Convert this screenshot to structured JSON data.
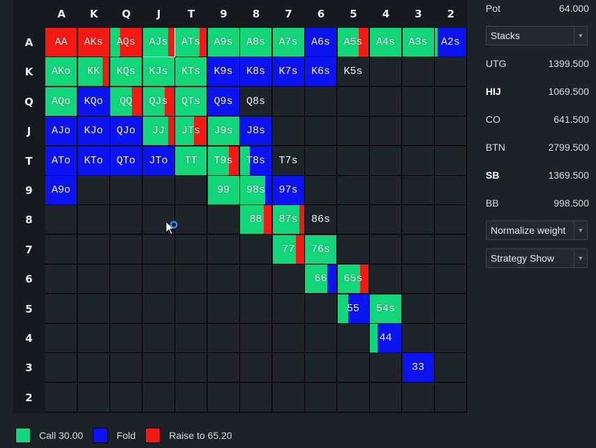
{
  "colors": {
    "call": "#12d77a",
    "fold": "#0b13f0",
    "raise": "#f21a12",
    "empty": "#1d252b"
  },
  "ranks": [
    "A",
    "K",
    "Q",
    "J",
    "T",
    "9",
    "8",
    "7",
    "6",
    "5",
    "4",
    "3",
    "2"
  ],
  "selected_hand": "AJs",
  "cells": [
    {
      "r": 0,
      "c": 0,
      "label": "AA",
      "mix": [
        [
          "raise",
          1
        ]
      ]
    },
    {
      "r": 0,
      "c": 1,
      "label": "AKs",
      "mix": [
        [
          "raise",
          1
        ]
      ]
    },
    {
      "r": 0,
      "c": 2,
      "label": "AQs",
      "mix": [
        [
          "call",
          0.32
        ],
        [
          "raise",
          0.68
        ]
      ]
    },
    {
      "r": 0,
      "c": 3,
      "label": "AJs",
      "mix": [
        [
          "call",
          0.8
        ],
        [
          "raise",
          0.2
        ]
      ]
    },
    {
      "r": 0,
      "c": 4,
      "label": "ATs",
      "mix": [
        [
          "call",
          0.78
        ],
        [
          "raise",
          0.22
        ]
      ]
    },
    {
      "r": 0,
      "c": 5,
      "label": "A9s",
      "mix": [
        [
          "call",
          1
        ]
      ]
    },
    {
      "r": 0,
      "c": 6,
      "label": "A8s",
      "mix": [
        [
          "call",
          1
        ]
      ]
    },
    {
      "r": 0,
      "c": 7,
      "label": "A7s",
      "mix": [
        [
          "call",
          1
        ]
      ]
    },
    {
      "r": 0,
      "c": 8,
      "label": "A6s",
      "mix": [
        [
          "fold",
          1
        ]
      ]
    },
    {
      "r": 0,
      "c": 9,
      "label": "A5s",
      "mix": [
        [
          "call",
          0.68
        ],
        [
          "raise",
          0.32
        ]
      ]
    },
    {
      "r": 0,
      "c": 10,
      "label": "A4s",
      "mix": [
        [
          "call",
          1
        ]
      ]
    },
    {
      "r": 0,
      "c": 11,
      "label": "A3s",
      "mix": [
        [
          "call",
          1
        ]
      ]
    },
    {
      "r": 0,
      "c": 12,
      "label": "A2s",
      "mix": [
        [
          "call",
          0.08
        ],
        [
          "fold",
          0.92
        ]
      ]
    },
    {
      "r": 1,
      "c": 0,
      "label": "AKo",
      "mix": [
        [
          "call",
          1
        ]
      ]
    },
    {
      "r": 1,
      "c": 1,
      "label": "KK",
      "mix": [
        [
          "call",
          0.78
        ],
        [
          "raise",
          0.22
        ]
      ]
    },
    {
      "r": 1,
      "c": 2,
      "label": "KQs",
      "mix": [
        [
          "call",
          1
        ]
      ]
    },
    {
      "r": 1,
      "c": 3,
      "label": "KJs",
      "mix": [
        [
          "call",
          1
        ]
      ]
    },
    {
      "r": 1,
      "c": 4,
      "label": "KTs",
      "mix": [
        [
          "call",
          1
        ]
      ]
    },
    {
      "r": 1,
      "c": 5,
      "label": "K9s",
      "mix": [
        [
          "fold",
          1
        ]
      ]
    },
    {
      "r": 1,
      "c": 6,
      "label": "K8s",
      "mix": [
        [
          "fold",
          1
        ]
      ]
    },
    {
      "r": 1,
      "c": 7,
      "label": "K7s",
      "mix": [
        [
          "fold",
          1
        ]
      ]
    },
    {
      "r": 1,
      "c": 8,
      "label": "K6s",
      "mix": [
        [
          "fold",
          1
        ]
      ]
    },
    {
      "r": 1,
      "c": 9,
      "label": "K5s",
      "mix": []
    },
    {
      "r": 2,
      "c": 0,
      "label": "AQo",
      "mix": [
        [
          "call",
          1
        ]
      ]
    },
    {
      "r": 2,
      "c": 1,
      "label": "KQo",
      "mix": [
        [
          "fold",
          1
        ]
      ]
    },
    {
      "r": 2,
      "c": 2,
      "label": "QQ",
      "mix": [
        [
          "call",
          0.68
        ],
        [
          "raise",
          0.32
        ]
      ]
    },
    {
      "r": 2,
      "c": 3,
      "label": "QJs",
      "mix": [
        [
          "call",
          0.7
        ],
        [
          "raise",
          0.3
        ]
      ]
    },
    {
      "r": 2,
      "c": 4,
      "label": "QTs",
      "mix": [
        [
          "call",
          1
        ]
      ]
    },
    {
      "r": 2,
      "c": 5,
      "label": "Q9s",
      "mix": [
        [
          "fold",
          1
        ]
      ]
    },
    {
      "r": 2,
      "c": 6,
      "label": "Q8s",
      "mix": []
    },
    {
      "r": 3,
      "c": 0,
      "label": "AJo",
      "mix": [
        [
          "fold",
          1
        ]
      ]
    },
    {
      "r": 3,
      "c": 1,
      "label": "KJo",
      "mix": [
        [
          "fold",
          1
        ]
      ]
    },
    {
      "r": 3,
      "c": 2,
      "label": "QJo",
      "mix": [
        [
          "fold",
          1
        ]
      ]
    },
    {
      "r": 3,
      "c": 3,
      "label": "JJ",
      "mix": [
        [
          "call",
          0.8
        ],
        [
          "raise",
          0.2
        ]
      ]
    },
    {
      "r": 3,
      "c": 4,
      "label": "JTs",
      "mix": [
        [
          "call",
          0.6
        ],
        [
          "raise",
          0.4
        ]
      ]
    },
    {
      "r": 3,
      "c": 5,
      "label": "J9s",
      "mix": [
        [
          "call",
          1
        ]
      ]
    },
    {
      "r": 3,
      "c": 6,
      "label": "J8s",
      "mix": [
        [
          "fold",
          1
        ]
      ]
    },
    {
      "r": 4,
      "c": 0,
      "label": "ATo",
      "mix": [
        [
          "fold",
          1
        ]
      ]
    },
    {
      "r": 4,
      "c": 1,
      "label": "KTo",
      "mix": [
        [
          "fold",
          1
        ]
      ]
    },
    {
      "r": 4,
      "c": 2,
      "label": "QTo",
      "mix": [
        [
          "fold",
          1
        ]
      ]
    },
    {
      "r": 4,
      "c": 3,
      "label": "JTo",
      "mix": [
        [
          "fold",
          1
        ]
      ]
    },
    {
      "r": 4,
      "c": 4,
      "label": "TT",
      "mix": [
        [
          "call",
          1
        ]
      ]
    },
    {
      "r": 4,
      "c": 5,
      "label": "T9s",
      "mix": [
        [
          "call",
          0.68
        ],
        [
          "raise",
          0.32
        ]
      ]
    },
    {
      "r": 4,
      "c": 6,
      "label": "T8s",
      "mix": [
        [
          "call",
          0.3
        ],
        [
          "fold",
          0.7
        ]
      ]
    },
    {
      "r": 4,
      "c": 7,
      "label": "T7s",
      "mix": []
    },
    {
      "r": 5,
      "c": 0,
      "label": "A9o",
      "mix": [
        [
          "fold",
          1
        ]
      ]
    },
    {
      "r": 5,
      "c": 5,
      "label": "99",
      "mix": [
        [
          "call",
          1
        ]
      ]
    },
    {
      "r": 5,
      "c": 6,
      "label": "98s",
      "mix": [
        [
          "call",
          0.8
        ],
        [
          "fold",
          0.2
        ]
      ]
    },
    {
      "r": 5,
      "c": 7,
      "label": "97s",
      "mix": [
        [
          "fold",
          1
        ]
      ]
    },
    {
      "r": 6,
      "c": 6,
      "label": "88",
      "mix": [
        [
          "call",
          0.75
        ],
        [
          "raise",
          0.25
        ]
      ]
    },
    {
      "r": 6,
      "c": 7,
      "label": "87s",
      "mix": [
        [
          "call",
          0.85
        ],
        [
          "raise",
          0.15
        ]
      ]
    },
    {
      "r": 6,
      "c": 8,
      "label": "86s",
      "mix": []
    },
    {
      "r": 7,
      "c": 7,
      "label": "77",
      "mix": [
        [
          "call",
          0.75
        ],
        [
          "raise",
          0.25
        ]
      ]
    },
    {
      "r": 7,
      "c": 8,
      "label": "76s",
      "mix": [
        [
          "call",
          1
        ]
      ]
    },
    {
      "r": 8,
      "c": 8,
      "label": "66",
      "mix": [
        [
          "call",
          0.7
        ],
        [
          "fold",
          0.3
        ]
      ]
    },
    {
      "r": 8,
      "c": 9,
      "label": "65s",
      "mix": [
        [
          "call",
          0.72
        ],
        [
          "raise",
          0.28
        ]
      ]
    },
    {
      "r": 9,
      "c": 9,
      "label": "55",
      "mix": [
        [
          "call",
          0.35
        ],
        [
          "fold",
          0.65
        ]
      ]
    },
    {
      "r": 9,
      "c": 10,
      "label": "54s",
      "mix": [
        [
          "call",
          1
        ]
      ]
    },
    {
      "r": 10,
      "c": 10,
      "label": "44",
      "mix": [
        [
          "call",
          0.25
        ],
        [
          "fold",
          0.75
        ]
      ]
    },
    {
      "r": 11,
      "c": 11,
      "label": "33",
      "mix": [
        [
          "fold",
          1
        ]
      ]
    },
    {
      "r": 12,
      "c": 12,
      "label": "",
      "mix": []
    }
  ],
  "panel": {
    "pot_label": "Pot",
    "pot_value": "64.000",
    "stacks_dropdown": "Stacks",
    "positions": [
      {
        "name": "UTG",
        "value": "1399.500",
        "bold": false
      },
      {
        "name": "HIJ",
        "value": "1069.500",
        "bold": true
      },
      {
        "name": "CO",
        "value": "641.500",
        "bold": false
      },
      {
        "name": "BTN",
        "value": "2799.500",
        "bold": false
      },
      {
        "name": "SB",
        "value": "1369.500",
        "bold": true
      },
      {
        "name": "BB",
        "value": "998.500",
        "bold": false
      }
    ],
    "normalize_dropdown": "Normalize weight",
    "strategy_dropdown": "Strategy Show"
  },
  "legend": [
    {
      "key": "call",
      "label": "Call 30.00"
    },
    {
      "key": "fold",
      "label": "Fold"
    },
    {
      "key": "raise",
      "label": "Raise to 65.20"
    }
  ]
}
